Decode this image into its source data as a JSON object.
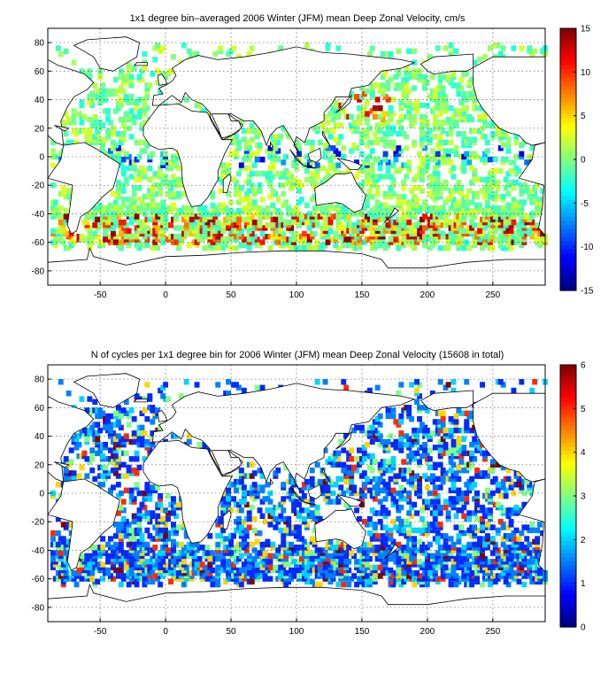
{
  "chart_data": [
    {
      "type": "heatmap",
      "title": "1x1 degree bin–averaged 2006 Winter (JFM) mean Deep Zonal Velocity, cm/s",
      "xlim": [
        -90,
        290
      ],
      "ylim": [
        -90,
        90
      ],
      "xticks": [
        "-50",
        "0",
        "50",
        "100",
        "150",
        "200",
        "250"
      ],
      "yticks": [
        "80",
        "60",
        "40",
        "20",
        "0",
        "-20",
        "-40",
        "-60",
        "-80"
      ],
      "colorbar": {
        "range": [
          -15,
          15
        ],
        "ticks": [
          "15",
          "10",
          "5",
          "0",
          "-5",
          "-10",
          "-15"
        ],
        "colormap": "jet"
      },
      "grid": true,
      "note_values": "scattered 1x1 degree bins over global ocean; values mostly near 0 (cyan/green), strong eastward (red) bands along the Southern Ocean near 45-60S and Kuroshio region"
    },
    {
      "type": "heatmap",
      "title": "N of cycles per 1x1 degree bin for 2006 Winter (JFM) mean Deep Zonal Velocity (15608 in total)",
      "xlim": [
        -90,
        290
      ],
      "ylim": [
        -90,
        90
      ],
      "xticks": [
        "-50",
        "0",
        "50",
        "100",
        "150",
        "200",
        "250"
      ],
      "yticks": [
        "80",
        "60",
        "40",
        "20",
        "0",
        "-20",
        "-40",
        "-60",
        "-80"
      ],
      "colorbar": {
        "range": [
          0,
          6
        ],
        "ticks": [
          "6",
          "5",
          "4",
          "3",
          "2",
          "1",
          "0"
        ],
        "colormap": "jet"
      },
      "grid": true,
      "total_cycles": 15608
    }
  ]
}
